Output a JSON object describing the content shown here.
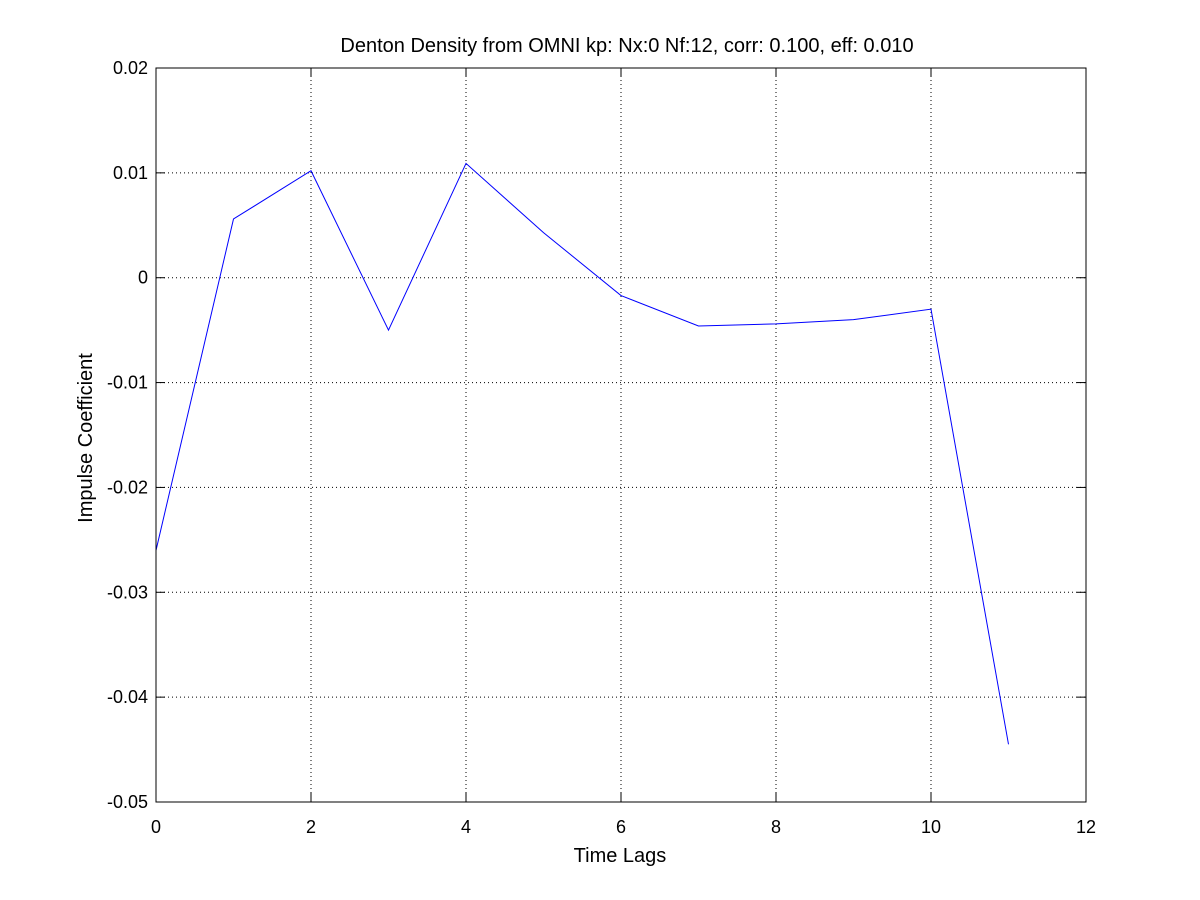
{
  "chart_data": {
    "type": "line",
    "title": "Denton Density from OMNI kp: Nx:0 Nf:12, corr: 0.100, eff: 0.010",
    "xlabel": "Time Lags",
    "ylabel": "Impulse Coefficient",
    "xlim": [
      0,
      12
    ],
    "ylim": [
      -0.05,
      0.02
    ],
    "xticks": [
      0,
      2,
      4,
      6,
      8,
      10,
      12
    ],
    "xtick_labels": [
      "0",
      "2",
      "4",
      "6",
      "8",
      "10",
      "12"
    ],
    "yticks": [
      0.02,
      0.01,
      0,
      -0.01,
      -0.02,
      -0.03,
      -0.04,
      -0.05
    ],
    "ytick_labels": [
      "0.02",
      "0.01",
      "0",
      "-0.01",
      "-0.02",
      "-0.03",
      "-0.04",
      "-0.05"
    ],
    "grid": true,
    "series": [
      {
        "color": "#0000ff",
        "x": [
          0,
          1,
          2,
          3,
          4,
          5,
          6,
          7,
          8,
          9,
          10,
          11
        ],
        "y": [
          -0.026,
          0.0056,
          0.0102,
          -0.005,
          0.0109,
          0.0043,
          -0.0017,
          -0.0046,
          -0.0044,
          -0.004,
          -0.003,
          -0.0445
        ]
      }
    ]
  }
}
